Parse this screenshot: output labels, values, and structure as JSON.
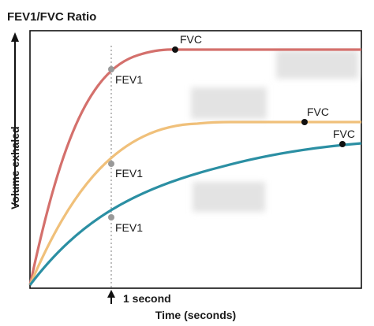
{
  "title": "FEV1/FVC Ratio",
  "axes": {
    "x_label": "Time (seconds)",
    "y_label": "Volume exhaled",
    "marker_label": "1 second"
  },
  "curves": [
    {
      "id": "red",
      "color": "#d4706c",
      "fev1_label": "FEV1",
      "fvc_label": "FVC"
    },
    {
      "id": "orange",
      "color": "#f0c07a",
      "fev1_label": "FEV1",
      "fvc_label": "FVC"
    },
    {
      "id": "teal",
      "color": "#2b8fa3",
      "fev1_label": "FEV1",
      "fvc_label": "FVC"
    }
  ],
  "colors": {
    "axis": "#111111",
    "fev1_marker": "#999999",
    "fvc_marker": "#111111",
    "blur_box": "#e6e6e6"
  }
}
